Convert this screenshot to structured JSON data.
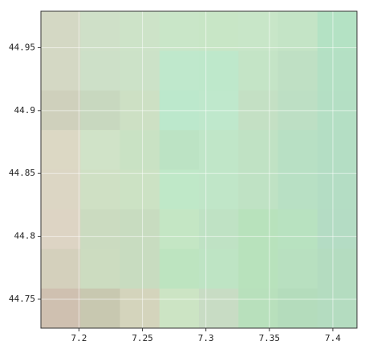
{
  "chart_data": {
    "type": "heatmap",
    "xlim": [
      7.17,
      7.419
    ],
    "ylim": [
      44.727,
      44.979
    ],
    "xticks": [
      7.2,
      7.25,
      7.3,
      7.35,
      7.4
    ],
    "yticks": [
      44.75,
      44.8,
      44.85,
      44.9,
      44.95
    ],
    "grid": true,
    "cell_colors": [
      [
        "#d4d8c4",
        "#cfe0c8",
        "#cde3c8",
        "#c9e6c8",
        "#c8e6c6",
        "#c8e6c8",
        "#c4e4c6",
        "#b4e2c4"
      ],
      [
        "#d4d8c4",
        "#cde0c8",
        "#cce2c8",
        "#bfe8cc",
        "#bee8cb",
        "#c4e4c6",
        "#bfe0c4",
        "#b4e0c4"
      ],
      [
        "#cfd0bc",
        "#c8d8bf",
        "#cde0c4",
        "#bce8cc",
        "#bfe8cc",
        "#c4e0c4",
        "#bddfc4",
        "#b4dfc4"
      ],
      [
        "#dcd8c4",
        "#d0e3c8",
        "#c9e2c4",
        "#bce3c4",
        "#c0e6c8",
        "#c0e2c4",
        "#b8e0c4",
        "#b4dec4"
      ],
      [
        "#dcd6c4",
        "#cfe0c4",
        "#cce2c4",
        "#bfe8c8",
        "#c0e6c8",
        "#bfe2c4",
        "#b8e0c4",
        "#b4ddc4"
      ],
      [
        "#ddd4c4",
        "#cbdbc0",
        "#c8dcc0",
        "#c4e6c4",
        "#bfe2c4",
        "#b8e2bc",
        "#b8e2c0",
        "#b4dcc4"
      ],
      [
        "#d4d0bc",
        "#ccdcc0",
        "#c8dcc0",
        "#bde4c0",
        "#bee4c4",
        "#b8e2bc",
        "#b8e0c0",
        "#b4dcc0"
      ],
      [
        "#cfc0b0",
        "#c8c8b0",
        "#d4d4bc",
        "#cce4c4",
        "#c8dcc4",
        "#b8e0bc",
        "#b4dcbc",
        "#b4dcc0"
      ]
    ]
  }
}
